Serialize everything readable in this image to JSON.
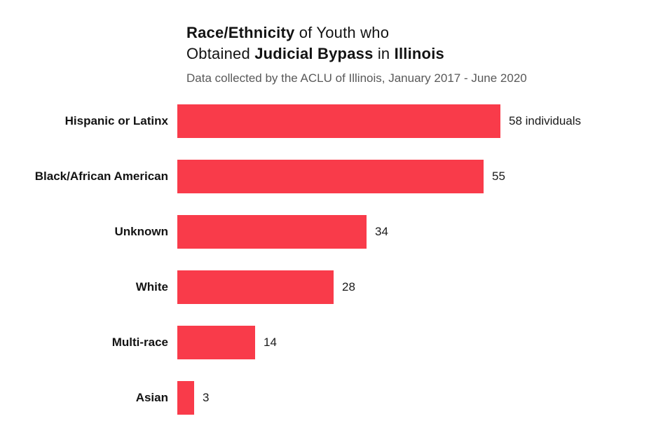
{
  "header": {
    "title_line1_bold": "Race/Ethnicity",
    "title_line1_regular": " of Youth who",
    "title_line2_regular1": "Obtained ",
    "title_line2_bold1": "Judicial Bypass",
    "title_line2_regular2": " in ",
    "title_line2_bold2": "Illinois",
    "subtitle": "Data collected by the ACLU of Illinois, January 2017 - June 2020"
  },
  "chart_data": {
    "type": "bar",
    "orientation": "horizontal",
    "title": "Race/Ethnicity of Youth who Obtained Judicial Bypass in Illinois",
    "subtitle": "Data collected by the ACLU of Illinois, January 2017 - June 2020",
    "categories": [
      "Hispanic or Latinx",
      "Black/African American",
      "Unknown",
      "White",
      "Multi-race",
      "Asian"
    ],
    "values": [
      58,
      55,
      34,
      28,
      14,
      3
    ],
    "value_labels": [
      "58 individuals",
      "55",
      "34",
      "28",
      "14",
      "3"
    ],
    "unit_label": "individuals",
    "xlim": [
      0,
      58
    ],
    "grid": false,
    "legend": false,
    "bar_color": "#f93b4a",
    "label_color": "#131313",
    "subtitle_color": "#595959",
    "background_color": "#ffffff"
  }
}
